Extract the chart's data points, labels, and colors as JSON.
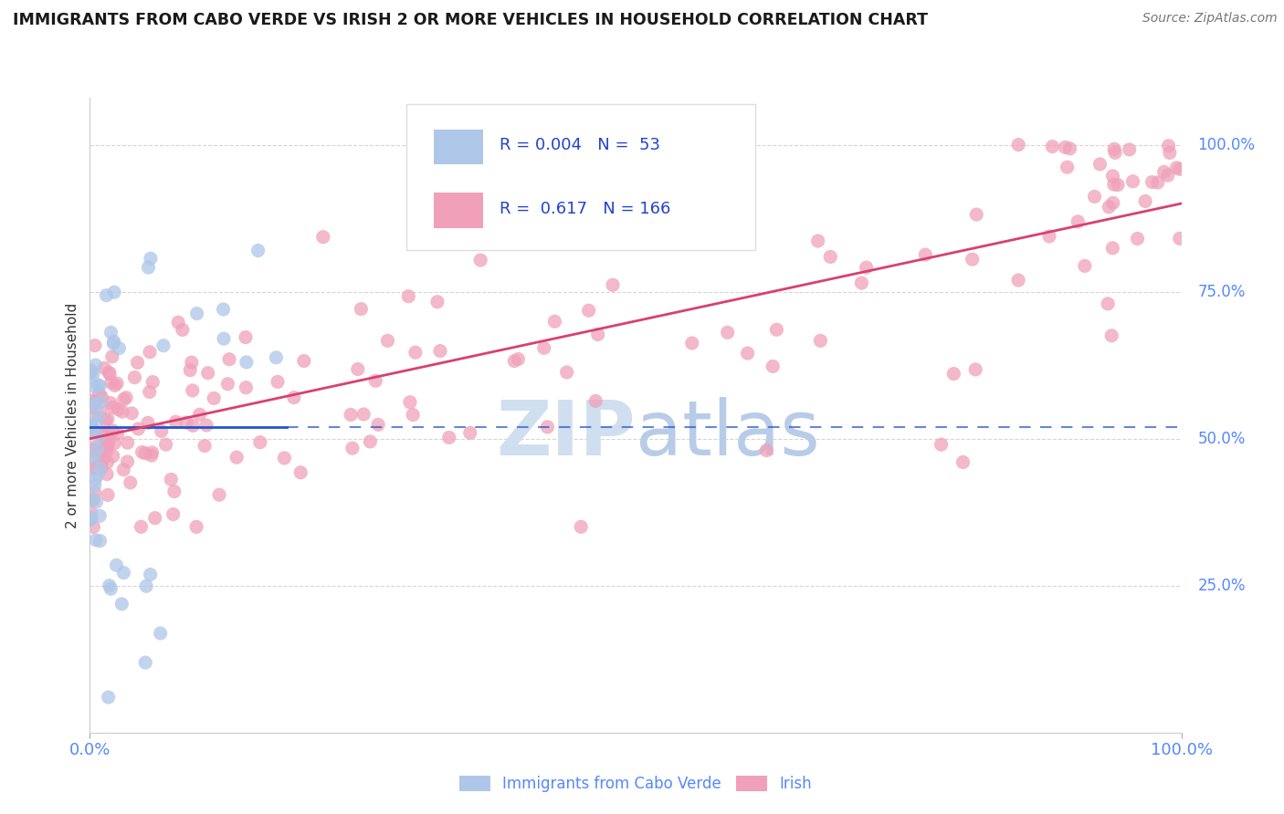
{
  "title": "IMMIGRANTS FROM CABO VERDE VS IRISH 2 OR MORE VEHICLES IN HOUSEHOLD CORRELATION CHART",
  "source": "Source: ZipAtlas.com",
  "ylabel": "2 or more Vehicles in Household",
  "legend_blue_label": "Immigrants from Cabo Verde",
  "legend_pink_label": "Irish",
  "blue_R": "0.004",
  "blue_N": "53",
  "pink_R": "0.617",
  "pink_N": "166",
  "blue_color": "#aec6e8",
  "pink_color": "#f0a0b8",
  "blue_line_color": "#2255cc",
  "pink_line_color": "#d94070",
  "legend_text_color": "#2244cc",
  "watermark_color": "#d0dff0",
  "background_color": "#ffffff",
  "grid_color": "#cccccc",
  "axis_label_color": "#5588ff",
  "xlim": [
    0.0,
    1.0
  ],
  "ylim": [
    0.0,
    1.08
  ],
  "blue_line_x_start": 0.0,
  "blue_line_x_solid_end": 0.18,
  "blue_line_x_dash_end": 1.0,
  "blue_line_y": 0.52,
  "pink_line_x_start": 0.0,
  "pink_line_x_end": 1.0,
  "pink_line_y_start": 0.5,
  "pink_line_y_end": 0.9
}
